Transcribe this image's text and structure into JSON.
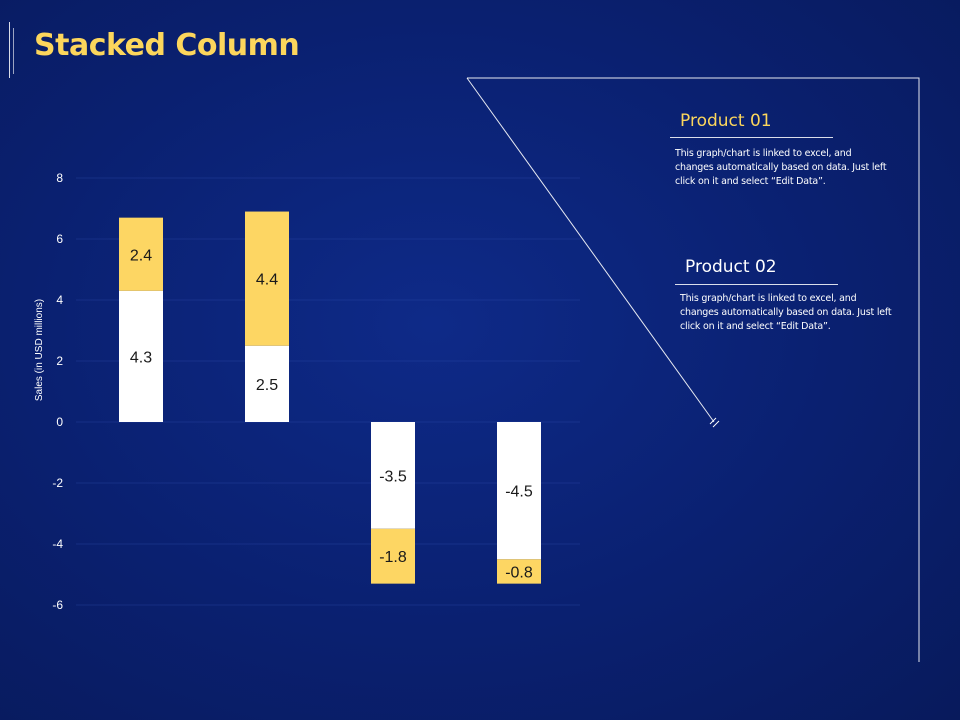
{
  "title": "Stacked Column",
  "colors": {
    "background": "#0a2070",
    "accent": "#fcd65c",
    "series_white": "#ffffff",
    "series_yellow": "#fdd663",
    "text": "#ffffff"
  },
  "chart_data": {
    "type": "bar",
    "stacked": true,
    "ylabel": "Sales (in USD millions)",
    "ylim": [
      -6,
      8
    ],
    "yticks": [
      "8",
      "6",
      "4",
      "2",
      "0",
      "-2",
      "-4",
      "-6"
    ],
    "grid": true,
    "series": [
      {
        "values": [
          4.3,
          2.5,
          -3.5,
          -4.5
        ],
        "labels": [
          "4.3",
          "2.5",
          "-3.5",
          "-4.5"
        ],
        "color": "#ffffff"
      },
      {
        "values": [
          2.4,
          4.4,
          -1.8,
          -0.8
        ],
        "labels": [
          "2.4",
          "4.4",
          "-1.8",
          "-0.8"
        ],
        "color": "#fdd663"
      }
    ]
  },
  "legend": [
    {
      "title": "Product 01",
      "description": "This graph/chart is linked to excel, and changes automatically based on data. Just left click on it and select “Edit Data”."
    },
    {
      "title": "Product 02",
      "description": "This graph/chart is linked to excel, and changes automatically based on data. Just left click on it and select “Edit Data”."
    }
  ]
}
